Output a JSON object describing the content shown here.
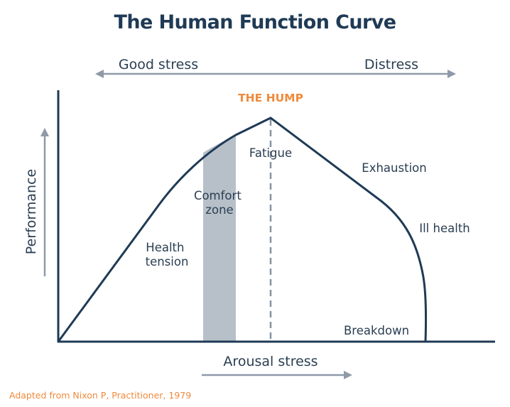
{
  "title": "The Human Function Curve",
  "top_arrow": {
    "left_label": "Good stress",
    "right_label": "Distress"
  },
  "hump_label": "THE HUMP",
  "y_axis_label": "Performance",
  "x_axis_label": "Arousal stress",
  "regions": {
    "health_tension": [
      "Health",
      "tension"
    ],
    "comfort_zone": [
      "Comfort",
      "zone"
    ],
    "fatigue": "Fatigue",
    "exhaustion": "Exhaustion",
    "ill_health": "Ill health",
    "breakdown": "Breakdown"
  },
  "source": "Adapted from Nixon P, Practitioner, 1979",
  "colors": {
    "navy": "#1f3a55",
    "orange": "#f08a3c",
    "gray_arrow": "#8e9aa8",
    "comfort_band": "#b7c0c9",
    "dashed_peak": "#8593a3",
    "label_text": "#2a3e52"
  }
}
